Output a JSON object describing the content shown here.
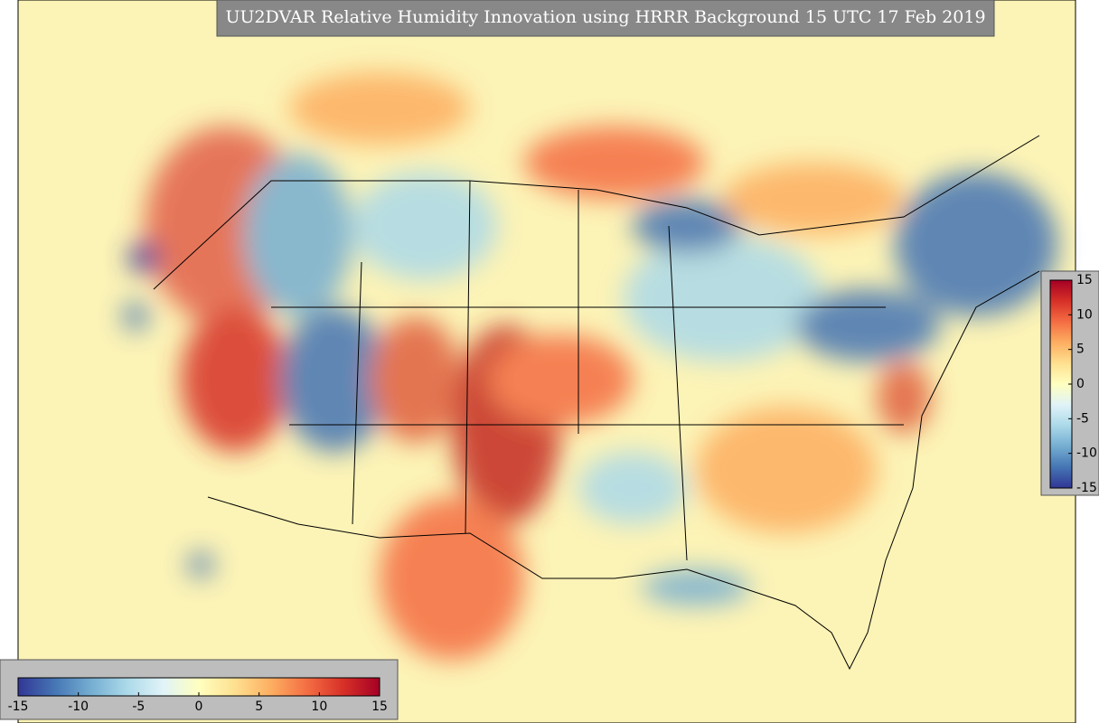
{
  "map": {
    "title": "UU2DVAR Relative Humidity Innovation using HRRR Background 15 UTC 17 Feb 2019",
    "colorbars": [
      {
        "orientation": "horizontal",
        "range": [
          -15,
          15
        ],
        "ticks": [
          -15,
          -10,
          -5,
          0,
          5,
          10,
          15
        ],
        "colors": [
          "#313695",
          "#4575b4",
          "#74add1",
          "#abd9e9",
          "#e0f3f8",
          "#ffffbf",
          "#fee090",
          "#fdae61",
          "#f46d43",
          "#d73027",
          "#a50026"
        ]
      },
      {
        "orientation": "vertical",
        "range": [
          -15,
          15
        ],
        "ticks": [
          -15,
          -10,
          -5,
          0,
          5,
          10,
          15
        ],
        "colors": [
          "#313695",
          "#4575b4",
          "#74add1",
          "#abd9e9",
          "#e0f3f8",
          "#ffffbf",
          "#fee090",
          "#fdae61",
          "#f46d43",
          "#d73027",
          "#a50026"
        ]
      }
    ]
  }
}
